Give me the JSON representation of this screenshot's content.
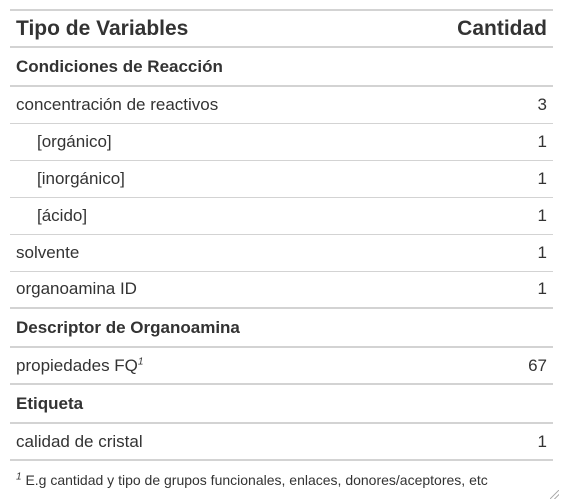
{
  "header": {
    "col_type": "Tipo de Variables",
    "col_qty": "Cantidad"
  },
  "groups": [
    {
      "label": "Condiciones de Reacción",
      "rows": [
        {
          "name": "concentración de reactivos",
          "qty": "3"
        },
        {
          "name": "[orgánico]",
          "qty": "1"
        },
        {
          "name": "[inorgánico]",
          "qty": "1"
        },
        {
          "name": "[ácido]",
          "qty": "1"
        },
        {
          "name": "solvente",
          "qty": "1"
        },
        {
          "name": "organoamina ID",
          "qty": "1"
        }
      ]
    },
    {
      "label": "Descriptor de Organoamina",
      "rows": [
        {
          "name": "propiedades FQ",
          "marker": "1",
          "qty": "67"
        }
      ]
    },
    {
      "label": "Etiqueta",
      "rows": [
        {
          "name": "calidad de cristal",
          "qty": "1"
        }
      ]
    }
  ],
  "footnote": {
    "marker": "1",
    "text": "E.g cantidad y tipo de grupos funcionales, enlaces, donores/aceptores, etc"
  }
}
